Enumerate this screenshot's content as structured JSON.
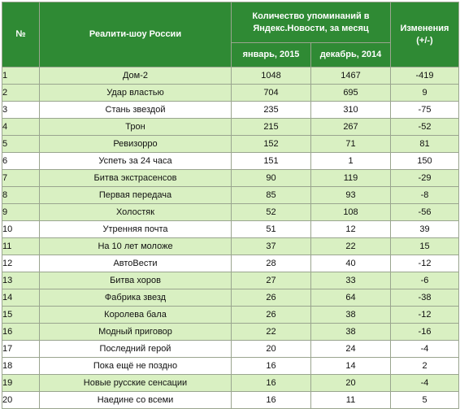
{
  "header": {
    "num": "№",
    "name": "Реалити-шоу России",
    "mentions": "Количество упоминаний в Яндекс.Новости, за месяц",
    "change": "Изменения (+/-)",
    "jan": "январь, 2015",
    "dec": "декабрь, 2014"
  },
  "rows": [
    {
      "n": "1",
      "name": "Дом-2",
      "jan": "1048",
      "dec": "1467",
      "diff": "-419",
      "hl": true
    },
    {
      "n": "2",
      "name": "Удар властью",
      "jan": "704",
      "dec": "695",
      "diff": "9",
      "hl": true
    },
    {
      "n": "3",
      "name": "Стань звездой",
      "jan": "235",
      "dec": "310",
      "diff": "-75",
      "hl": false
    },
    {
      "n": "4",
      "name": "Трон",
      "jan": "215",
      "dec": "267",
      "diff": "-52",
      "hl": true
    },
    {
      "n": "5",
      "name": "Ревизорро",
      "jan": "152",
      "dec": "71",
      "diff": "81",
      "hl": true
    },
    {
      "n": "6",
      "name": "Успеть за 24 часа",
      "jan": "151",
      "dec": "1",
      "diff": "150",
      "hl": false
    },
    {
      "n": "7",
      "name": "Битва экстрасенсов",
      "jan": "90",
      "dec": "119",
      "diff": "-29",
      "hl": true
    },
    {
      "n": "8",
      "name": "Первая передача",
      "jan": "85",
      "dec": "93",
      "diff": "-8",
      "hl": true
    },
    {
      "n": "9",
      "name": "Холостяк",
      "jan": "52",
      "dec": "108",
      "diff": "-56",
      "hl": true
    },
    {
      "n": "10",
      "name": "Утренняя почта",
      "jan": "51",
      "dec": "12",
      "diff": "39",
      "hl": false
    },
    {
      "n": "11",
      "name": "На 10 лет моложе",
      "jan": "37",
      "dec": "22",
      "diff": "15",
      "hl": true
    },
    {
      "n": "12",
      "name": "АвтоВести",
      "jan": "28",
      "dec": "40",
      "diff": "-12",
      "hl": false
    },
    {
      "n": "13",
      "name": "Битва хоров",
      "jan": "27",
      "dec": "33",
      "diff": "-6",
      "hl": true
    },
    {
      "n": "14",
      "name": "Фабрика звезд",
      "jan": "26",
      "dec": "64",
      "diff": "-38",
      "hl": true
    },
    {
      "n": "15",
      "name": "Королева бала",
      "jan": "26",
      "dec": "38",
      "diff": "-12",
      "hl": true
    },
    {
      "n": "16",
      "name": "Модный приговор",
      "jan": "22",
      "dec": "38",
      "diff": "-16",
      "hl": true
    },
    {
      "n": "17",
      "name": "Последний герой",
      "jan": "20",
      "dec": "24",
      "diff": "-4",
      "hl": false
    },
    {
      "n": "18",
      "name": "Пока ещё не поздно",
      "jan": "16",
      "dec": "14",
      "diff": "2",
      "hl": false
    },
    {
      "n": "19",
      "name": "Новые русские сенсации",
      "jan": "16",
      "dec": "20",
      "diff": "-4",
      "hl": true
    },
    {
      "n": "20",
      "name": "Наедине со всеми",
      "jan": "16",
      "dec": "11",
      "diff": "5",
      "hl": false
    }
  ]
}
